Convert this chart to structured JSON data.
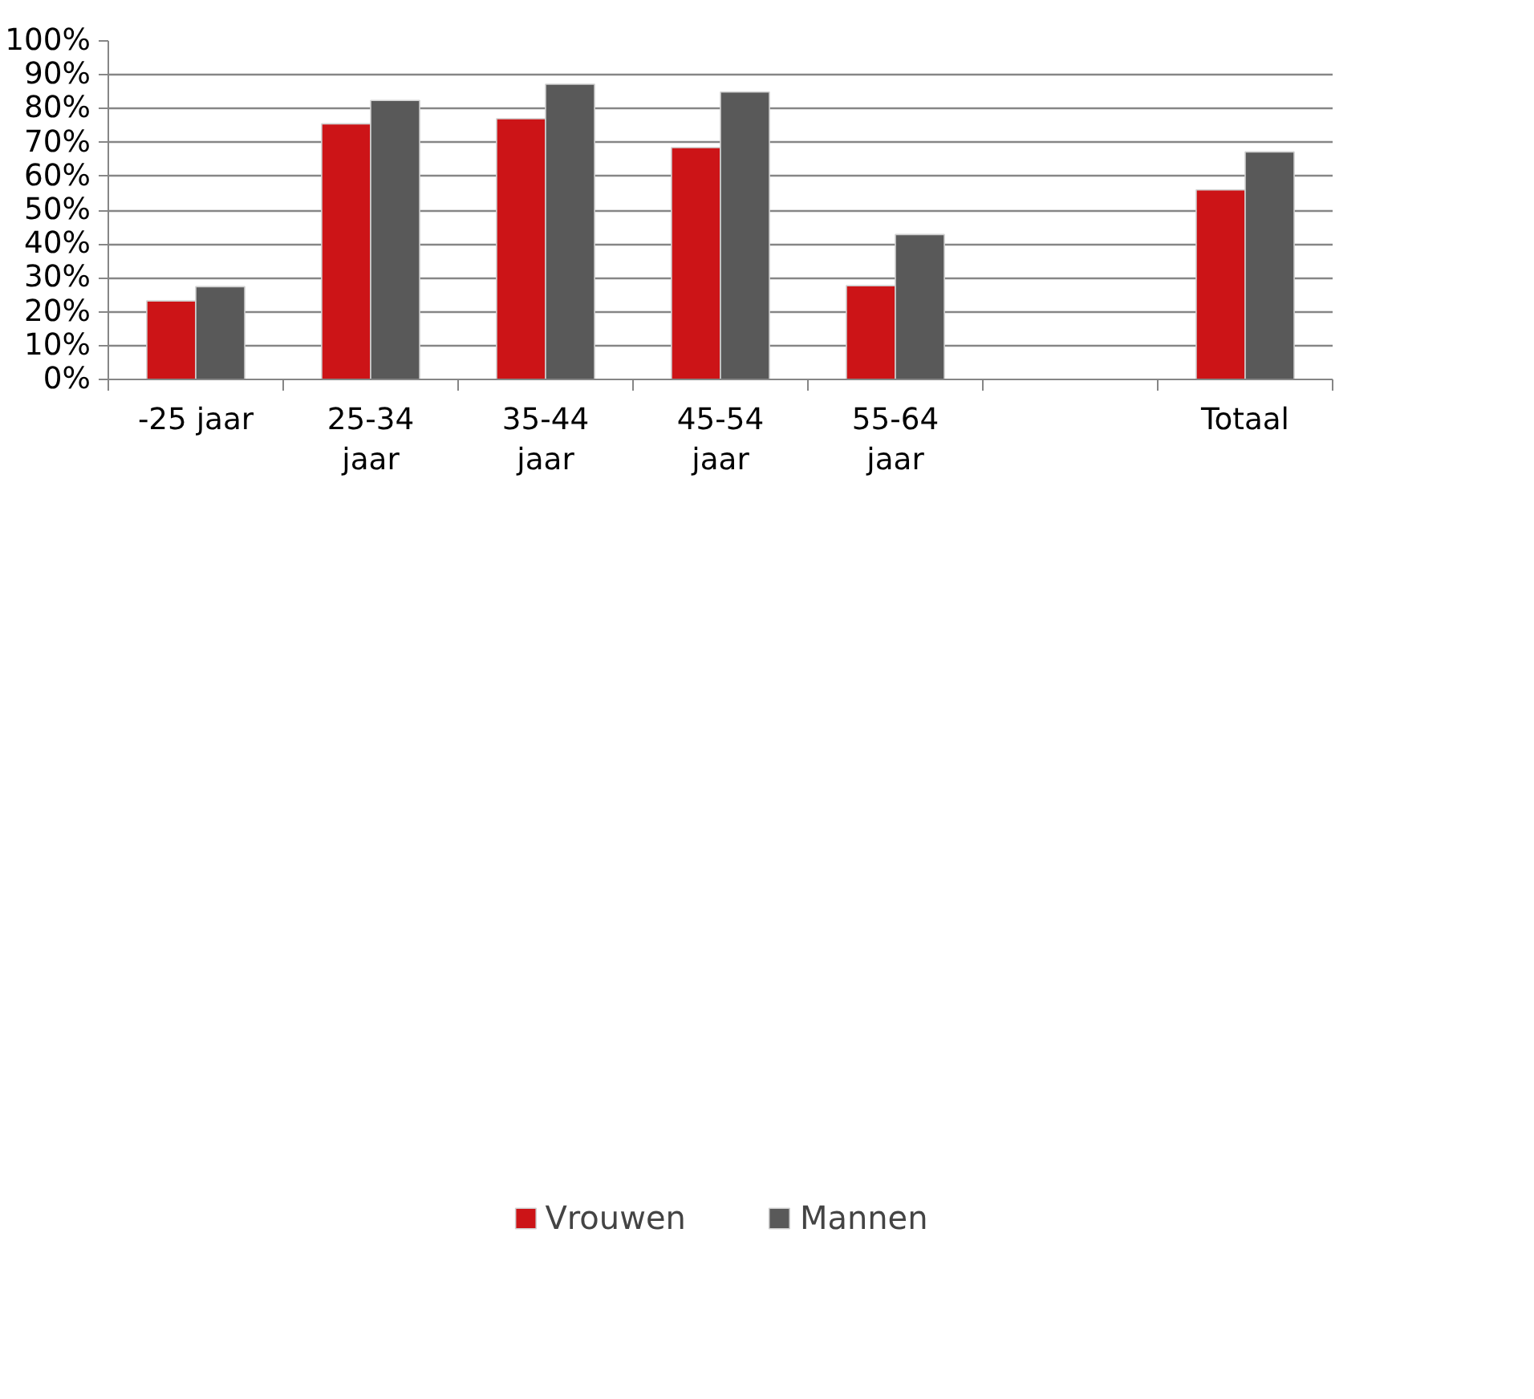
{
  "chart_data": {
    "type": "bar",
    "categories": [
      "-25 jaar",
      "25-34 jaar",
      "35-44 jaar",
      "45-54 jaar",
      "55-64 jaar",
      null,
      "Totaal"
    ],
    "series": [
      {
        "name": "Vrouwen",
        "color": "#cc1417",
        "values": [
          23.2,
          75.5,
          77.0,
          68.5,
          27.7,
          null,
          56.0
        ]
      },
      {
        "name": "Mannen",
        "color": "#595959",
        "values": [
          27.4,
          82.4,
          87.2,
          84.9,
          42.8,
          null,
          67.2
        ]
      }
    ],
    "ylim": [
      0,
      100
    ],
    "yticks": [
      {
        "value": 0,
        "label": "0%"
      },
      {
        "value": 10,
        "label": "10%"
      },
      {
        "value": 20,
        "label": "20%"
      },
      {
        "value": 30,
        "label": "30%"
      },
      {
        "value": 40,
        "label": "40%"
      },
      {
        "value": 50,
        "label": "50%"
      },
      {
        "value": 60,
        "label": "60%"
      },
      {
        "value": 70,
        "label": "70%"
      },
      {
        "value": 80,
        "label": "80%"
      },
      {
        "value": 90,
        "label": "90%"
      },
      {
        "value": 100,
        "label": "100%"
      }
    ],
    "grid": "y",
    "legend": "bottom"
  }
}
